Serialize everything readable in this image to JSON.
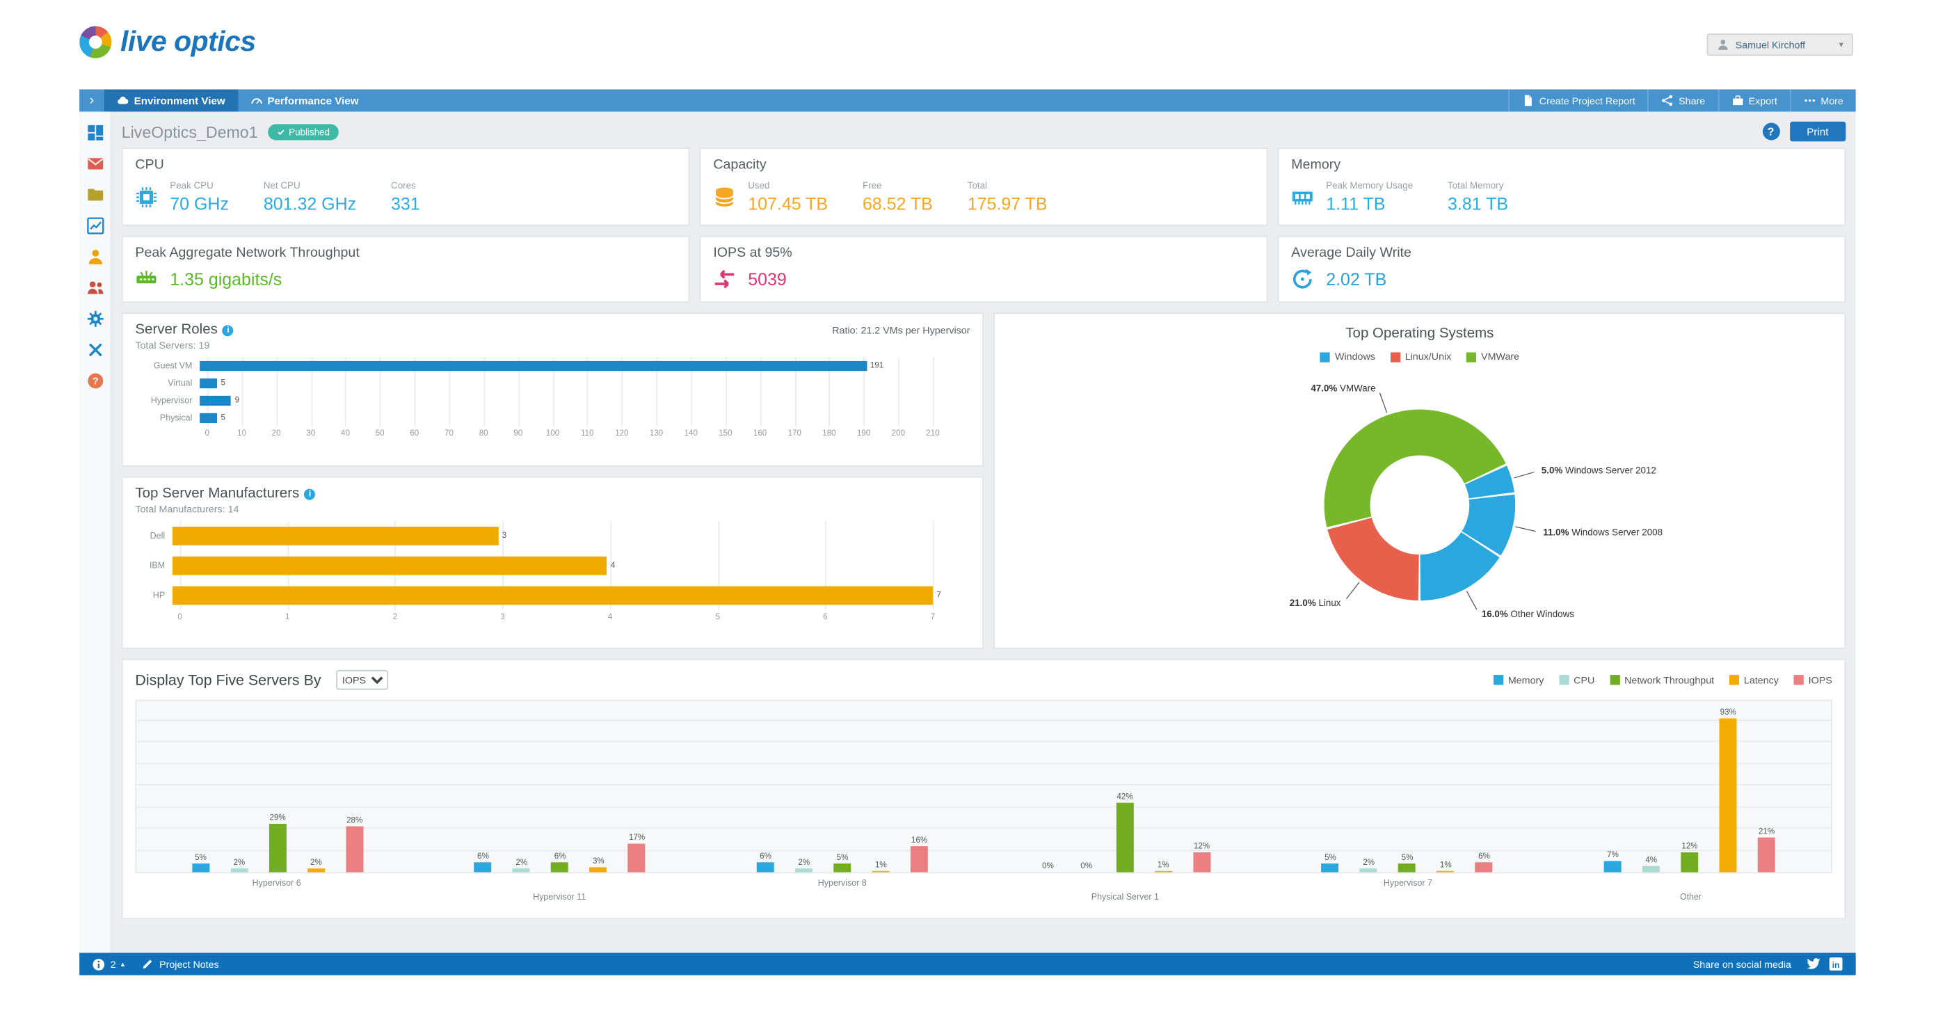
{
  "header": {
    "logo_text": "live optics",
    "user_name": "Samuel Kirchoff"
  },
  "navbar": {
    "tabs": [
      {
        "label": "Environment View",
        "icon": "cloud",
        "active": true
      },
      {
        "label": "Performance View",
        "icon": "gauge",
        "active": false
      }
    ],
    "actions": [
      {
        "label": "Create Project Report",
        "icon": "document"
      },
      {
        "label": "Share",
        "icon": "share"
      },
      {
        "label": "Export",
        "icon": "export"
      },
      {
        "label": "More",
        "icon": "ellipsis"
      }
    ]
  },
  "sidebar": {
    "items": [
      {
        "name": "dashboard",
        "color": "#1b87c9"
      },
      {
        "name": "mail",
        "color": "#e05c4f"
      },
      {
        "name": "folder",
        "color": "#b5a12a"
      },
      {
        "name": "chart",
        "color": "#1b87c9"
      },
      {
        "name": "user",
        "color": "#f0a202"
      },
      {
        "name": "users",
        "color": "#c94f43"
      },
      {
        "name": "gear",
        "color": "#1b87c9"
      },
      {
        "name": "tools",
        "color": "#1b87c9"
      },
      {
        "name": "help",
        "color": "#e8764b"
      }
    ]
  },
  "toolbar": {
    "project_name": "LiveOptics_Demo1",
    "published_label": "Published",
    "help_label": "?",
    "print_label": "Print"
  },
  "metric_cards": [
    {
      "title": "CPU",
      "icon": "cpu",
      "value_color": "#29abe2",
      "stats": [
        {
          "label": "Peak CPU",
          "value": "70 GHz"
        },
        {
          "label": "Net CPU",
          "value": "801.32 GHz"
        },
        {
          "label": "Cores",
          "value": "331"
        }
      ]
    },
    {
      "title": "Capacity",
      "icon": "database",
      "value_color": "#f5a623",
      "stats": [
        {
          "label": "Used",
          "value": "107.45 TB"
        },
        {
          "label": "Free",
          "value": "68.52 TB"
        },
        {
          "label": "Total",
          "value": "175.97 TB"
        }
      ]
    },
    {
      "title": "Memory",
      "icon": "memory",
      "value_color": "#29abe2",
      "stats": [
        {
          "label": "Peak Memory Usage",
          "value": "1.11 TB"
        },
        {
          "label": "Total Memory",
          "value": "3.81 TB"
        }
      ]
    },
    {
      "title": "Peak Aggregate Network Throughput",
      "icon": "network",
      "value_color": "#5cb82a",
      "stats": [
        {
          "label": "",
          "value": "1.35 gigabits/s"
        }
      ]
    },
    {
      "title": "IOPS at 95%",
      "icon": "iops",
      "value_color": "#dd3770",
      "stats": [
        {
          "label": "",
          "value": "5039"
        }
      ]
    },
    {
      "title": "Average Daily Write",
      "icon": "write",
      "value_color": "#2a9fd8",
      "stats": [
        {
          "label": "",
          "value": "2.02 TB"
        }
      ]
    }
  ],
  "chart_data": [
    {
      "id": "server_roles",
      "type": "bar",
      "orientation": "horizontal",
      "title": "Server Roles",
      "subtitle": "Total Servers: 19",
      "note": "Ratio: 21.2 VMs per Hypervisor",
      "categories": [
        "Guest VM",
        "Virtual",
        "Hypervisor",
        "Physical"
      ],
      "values": [
        191,
        5,
        9,
        5
      ],
      "bar_color": "#1b87c9",
      "xlim": [
        0,
        210
      ],
      "tick_step": 10,
      "grid": true
    },
    {
      "id": "top_manufacturers",
      "type": "bar",
      "orientation": "horizontal",
      "title": "Top Server Manufacturers",
      "subtitle": "Total Manufacturers: 14",
      "categories": [
        "Dell",
        "IBM",
        "HP"
      ],
      "values": [
        3,
        4,
        7
      ],
      "bar_color": "#f0ab00",
      "xlim": [
        0,
        7
      ],
      "tick_step": 1,
      "grid": true
    },
    {
      "id": "top_os",
      "type": "pie",
      "title": "Top Operating Systems",
      "legend": [
        {
          "label": "Windows",
          "color": "#2ba7df"
        },
        {
          "label": "Linux/Unix",
          "color": "#e8604c"
        },
        {
          "label": "VMWare",
          "color": "#76b82a"
        }
      ],
      "slices": [
        {
          "label": "VMWare",
          "pct": 47.0,
          "color": "#76b82a"
        },
        {
          "label": "Windows Server 2012",
          "pct": 5.0,
          "color": "#2ba7df"
        },
        {
          "label": "Windows Server 2008",
          "pct": 11.0,
          "color": "#2ba7df"
        },
        {
          "label": "Other Windows",
          "pct": 16.0,
          "color": "#2ba7df"
        },
        {
          "label": "Linux",
          "pct": 21.0,
          "color": "#e8604c"
        }
      ],
      "start_angle_deg": -104.2
    },
    {
      "id": "top_servers",
      "type": "bar",
      "title": "Display Top Five Servers By",
      "selector_value": "IOPS",
      "selector_options": [
        "IOPS"
      ],
      "categories": [
        "Hypervisor 6",
        "Hypervisor 11",
        "Hypervisor 8",
        "Physical Server 1",
        "Hypervisor 7",
        "Other"
      ],
      "series": [
        {
          "name": "Memory",
          "color": "#2ba7df",
          "values": [
            5,
            6,
            6,
            0,
            5,
            7
          ]
        },
        {
          "name": "CPU",
          "color": "#a9dbd4",
          "values": [
            2,
            2,
            2,
            0,
            2,
            4
          ]
        },
        {
          "name": "Network Throughput",
          "color": "#72ad21",
          "values": [
            29,
            6,
            5,
            42,
            5,
            12
          ]
        },
        {
          "name": "Latency",
          "color": "#f2ab00",
          "values": [
            2,
            3,
            1,
            1,
            1,
            93
          ]
        },
        {
          "name": "IOPS",
          "color": "#ea7e81",
          "values": [
            28,
            17,
            16,
            12,
            6,
            21
          ]
        }
      ],
      "unit": "%",
      "ylim": [
        0,
        100
      ],
      "grid": true
    }
  ],
  "footer": {
    "count_label": "2",
    "notes_label": "Project Notes",
    "share_label": "Share on social media"
  }
}
